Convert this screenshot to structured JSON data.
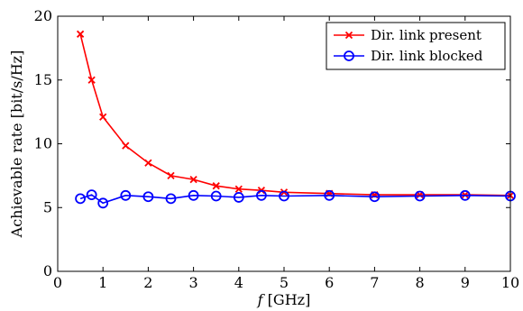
{
  "chart_data": {
    "type": "line",
    "title": "",
    "xlabel_italic": "f",
    "xlabel_rest": " [GHz]",
    "ylabel": "Achievable rate [bit/s/Hz]",
    "xlim": [
      0,
      10
    ],
    "ylim": [
      0,
      20
    ],
    "xticks": [
      0,
      1,
      2,
      3,
      4,
      5,
      6,
      7,
      8,
      9,
      10
    ],
    "yticks": [
      0,
      5,
      10,
      15,
      20
    ],
    "grid": false,
    "legend_position": "top-right",
    "series": [
      {
        "name": "Dir. link present",
        "color": "#ff0000",
        "marker": "x",
        "x": [
          0.5,
          0.75,
          1,
          1.5,
          2,
          2.5,
          3,
          3.5,
          4,
          4.5,
          5,
          6,
          7,
          8,
          9,
          10
        ],
        "y": [
          18.6,
          15.0,
          12.1,
          9.85,
          8.5,
          7.5,
          7.2,
          6.7,
          6.45,
          6.35,
          6.2,
          6.1,
          6.0,
          6.0,
          6.0,
          5.95
        ]
      },
      {
        "name": "Dir. link blocked",
        "color": "#0000ff",
        "marker": "circle",
        "x": [
          0.5,
          0.75,
          1,
          1.5,
          2,
          2.5,
          3,
          3.5,
          4,
          4.5,
          5,
          6,
          7,
          8,
          9,
          10
        ],
        "y": [
          5.7,
          6.0,
          5.35,
          5.95,
          5.85,
          5.7,
          5.95,
          5.9,
          5.8,
          5.95,
          5.9,
          5.95,
          5.85,
          5.9,
          5.95,
          5.9
        ]
      }
    ]
  }
}
